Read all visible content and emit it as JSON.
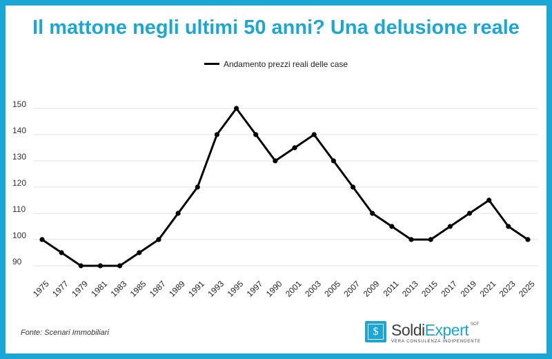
{
  "title": "Il mattone negli ultimi 50 anni? Una delusione reale",
  "source": "Fonte: Scenari Immobiliari",
  "logo": {
    "name_part1": "Soldi",
    "name_part2": "Expert",
    "superscript": "SCF",
    "tagline": "VERA CONSULENZA INDIPENDENTE",
    "icon": "dollar-sign-icon"
  },
  "colors": {
    "accent": "#1ba7d6",
    "line": "#000000"
  },
  "chart_data": {
    "type": "line",
    "title": "Il mattone negli ultimi 50 anni? Una delusione reale",
    "legend_position": "top",
    "grid": true,
    "y_ticks": [
      90,
      100,
      110,
      120,
      130,
      140,
      150
    ],
    "ylim": [
      90,
      150
    ],
    "categories": [
      "1975",
      "1977",
      "1979",
      "1981",
      "1983",
      "1985",
      "1987",
      "1989",
      "1991",
      "1993",
      "1995",
      "1997",
      "1990",
      "2001",
      "2003",
      "2005",
      "2007",
      "2009",
      "2011",
      "2013",
      "2015",
      "2017",
      "2019",
      "2021",
      "2023",
      "2025"
    ],
    "series": [
      {
        "name": "Andamento prezzi reali delle case",
        "values": [
          100,
          95,
          90,
          90,
          90,
          95,
          100,
          110,
          120,
          140,
          150,
          140,
          130,
          135,
          140,
          130,
          120,
          110,
          105,
          100,
          100,
          105,
          110,
          115,
          105,
          100
        ]
      }
    ]
  }
}
